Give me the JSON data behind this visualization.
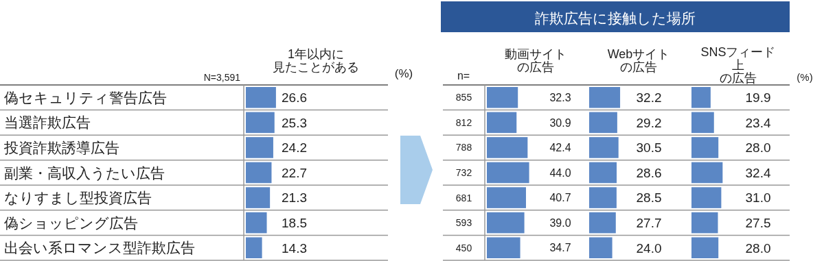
{
  "chart_data": [
    {
      "type": "bar",
      "orientation": "horizontal",
      "title": "1年以内に見たことがある",
      "annotations": [
        "N=3,591",
        "(%)"
      ],
      "categories": [
        "偽セキュリティ警告広告",
        "当選詐欺広告",
        "投資詐欺誘導広告",
        "副業・高収入うたい広告",
        "なりすまし型投資広告",
        "偽ショッピング広告",
        "出会い系ロマンス型詐欺広告"
      ],
      "values": [
        26.6,
        25.3,
        24.2,
        22.7,
        21.3,
        18.5,
        14.3
      ],
      "value_labels": [
        "26.6",
        "25.3",
        "24.2",
        "22.7",
        "21.3",
        "18.5",
        "14.3"
      ],
      "color": "#5b87c5"
    },
    {
      "type": "bar",
      "orientation": "horizontal",
      "title": "動画サイトの広告",
      "annotations": [
        "詐欺広告に接触した場所",
        "n="
      ],
      "categories": [
        "855",
        "812",
        "788",
        "732",
        "681",
        "593",
        "450"
      ],
      "values": [
        32.3,
        30.9,
        42.4,
        44.0,
        40.7,
        39.0,
        34.7
      ],
      "value_labels": [
        "32.3",
        "30.9",
        "42.4",
        "44.0",
        "40.7",
        "39.0",
        "34.7"
      ],
      "color": "#5b87c5"
    },
    {
      "type": "bar",
      "orientation": "horizontal",
      "title": "Webサイトの広告",
      "categories": [
        null,
        null,
        null,
        null,
        null,
        null,
        null
      ],
      "values": [
        32.2,
        29.2,
        30.5,
        28.6,
        28.5,
        27.7,
        24.0
      ],
      "value_labels": [
        "32.2",
        "29.2",
        "30.5",
        "28.6",
        "28.5",
        "27.7",
        "24.0"
      ],
      "color": "#5b87c5"
    },
    {
      "type": "bar",
      "orientation": "horizontal",
      "title": "SNSフィード上の広告",
      "annotations": [
        "(%)"
      ],
      "categories": [
        null,
        null,
        null,
        null,
        null,
        null,
        null
      ],
      "values": [
        19.9,
        23.4,
        28.0,
        32.4,
        31.0,
        27.5,
        28.0
      ],
      "value_labels": [
        "19.9",
        "23.4",
        "28.0",
        "32.4",
        "31.0",
        "27.5",
        "28.0"
      ],
      "color": "#5b87c5"
    }
  ]
}
